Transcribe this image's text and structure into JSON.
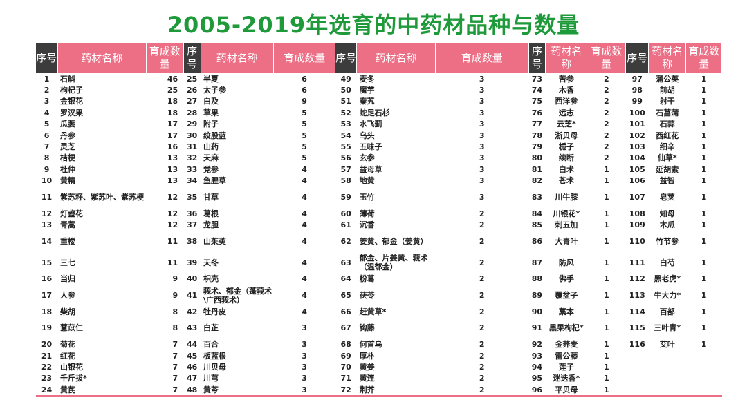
{
  "title": "2005-2019年选育的中药材品种与数量",
  "headers": [
    "序号",
    "药材名称",
    "育成数量",
    "序号",
    "药材名称",
    "育成数量",
    "序号",
    "药材名称",
    "育成数量",
    "序号",
    "药材名称",
    "育成数量",
    "序号",
    "药材名称",
    "育成数量"
  ],
  "rows": [
    [
      [
        "1",
        "石斛",
        "46"
      ],
      [
        "25",
        "半夏",
        "6"
      ],
      [
        "49",
        "麦冬",
        "3"
      ],
      [
        "73",
        "苦参",
        "2"
      ],
      [
        "97",
        "蒲公英",
        "1"
      ]
    ],
    [
      [
        "2",
        "枸杞子",
        "25"
      ],
      [
        "26",
        "太子参",
        "6"
      ],
      [
        "50",
        "魔芋",
        "3"
      ],
      [
        "74",
        "木香",
        "2"
      ],
      [
        "98",
        "前胡",
        "1"
      ]
    ],
    [
      [
        "3",
        "金银花",
        "18"
      ],
      [
        "27",
        "白及",
        "9"
      ],
      [
        "51",
        "秦艽",
        "3"
      ],
      [
        "75",
        "西洋参",
        "2"
      ],
      [
        "99",
        "射干",
        "1"
      ]
    ],
    [
      [
        "4",
        "罗汉果",
        "18"
      ],
      [
        "28",
        "草果",
        "5"
      ],
      [
        "52",
        "蛇足石杉",
        "3"
      ],
      [
        "76",
        "远志",
        "2"
      ],
      [
        "100",
        "石菖蒲",
        "1"
      ]
    ],
    [
      [
        "5",
        "瓜蒌",
        "17"
      ],
      [
        "29",
        "附子",
        "5"
      ],
      [
        "53",
        "水飞蓟",
        "3"
      ],
      [
        "77",
        "云芝*",
        "2"
      ],
      [
        "101",
        "石蒜",
        "1"
      ]
    ],
    [
      [
        "6",
        "丹参",
        "17"
      ],
      [
        "30",
        "绞股蓝",
        "5"
      ],
      [
        "54",
        "乌头",
        "3"
      ],
      [
        "78",
        "浙贝母",
        "2"
      ],
      [
        "102",
        "西红花",
        "1"
      ]
    ],
    [
      [
        "7",
        "灵芝",
        "16"
      ],
      [
        "31",
        "山药",
        "5"
      ],
      [
        "55",
        "五味子",
        "3"
      ],
      [
        "79",
        "栀子",
        "2"
      ],
      [
        "103",
        "细辛",
        "1"
      ]
    ],
    [
      [
        "8",
        "桔梗",
        "13"
      ],
      [
        "32",
        "天麻",
        "5"
      ],
      [
        "56",
        "玄参",
        "3"
      ],
      [
        "80",
        "续断",
        "2"
      ],
      [
        "104",
        "仙草*",
        "1"
      ]
    ],
    [
      [
        "9",
        "杜仲",
        "13"
      ],
      [
        "33",
        "党参",
        "4"
      ],
      [
        "57",
        "益母草",
        "3"
      ],
      [
        "81",
        "白术",
        "1"
      ],
      [
        "105",
        "延胡索",
        "1"
      ]
    ],
    [
      [
        "10",
        "黄精",
        "13"
      ],
      [
        "34",
        "鱼腥草",
        "4"
      ],
      [
        "58",
        "地黄",
        "3"
      ],
      [
        "82",
        "苍术",
        "1"
      ],
      [
        "106",
        "益智",
        "1"
      ]
    ],
    [
      [
        "11",
        "紫苏籽、紫苏叶、紫苏梗",
        "12"
      ],
      [
        "35",
        "甘草",
        "4"
      ],
      [
        "59",
        "玉竹",
        "3"
      ],
      [
        "83",
        "川牛膝",
        "1"
      ],
      [
        "107",
        "皂荚",
        "1"
      ]
    ],
    [
      [
        "12",
        "灯盏花",
        "12"
      ],
      [
        "36",
        "葛根",
        "4"
      ],
      [
        "60",
        "薄荷",
        "2"
      ],
      [
        "84",
        "川银花*",
        "1"
      ],
      [
        "108",
        "知母",
        "1"
      ]
    ],
    [
      [
        "13",
        "青蒿",
        "12"
      ],
      [
        "37",
        "龙胆",
        "4"
      ],
      [
        "61",
        "沉香",
        "2"
      ],
      [
        "85",
        "刺五加",
        "1"
      ],
      [
        "109",
        "木瓜",
        "1"
      ]
    ],
    [
      [
        "14",
        "重楼",
        "11"
      ],
      [
        "38",
        "山茱萸",
        "4"
      ],
      [
        "62",
        "姜黄、郁金（姜黄）",
        "2"
      ],
      [
        "86",
        "大青叶",
        "1"
      ],
      [
        "110",
        "竹节参",
        "1"
      ]
    ],
    [
      [
        "15",
        "三七",
        "11"
      ],
      [
        "39",
        "天冬",
        "4"
      ],
      [
        "63",
        "郁金、片姜黄、莪术（温郁金）",
        "2"
      ],
      [
        "87",
        "防风",
        "1"
      ],
      [
        "111",
        "白芍",
        "1"
      ]
    ],
    [
      [
        "16",
        "当归",
        "9"
      ],
      [
        "40",
        "枳壳",
        "4"
      ],
      [
        "64",
        "粉葛",
        "2"
      ],
      [
        "88",
        "佛手",
        "1"
      ],
      [
        "112",
        "黑老虎*",
        "1"
      ]
    ],
    [
      [
        "17",
        "人参",
        "9"
      ],
      [
        "41",
        "莪术、郁金（蓬莪术\\广西莪术）",
        "4"
      ],
      [
        "65",
        "茯苓",
        "2"
      ],
      [
        "89",
        "覆盆子",
        "1"
      ],
      [
        "113",
        "牛大力*",
        "1"
      ]
    ],
    [
      [
        "18",
        "柴胡",
        "8"
      ],
      [
        "42",
        "牡丹皮",
        "4"
      ],
      [
        "66",
        "赶黄草*",
        "2"
      ],
      [
        "90",
        "藁本",
        "1"
      ],
      [
        "114",
        "百部",
        "1"
      ]
    ],
    [
      [
        "19",
        "薏苡仁",
        "8"
      ],
      [
        "43",
        "白芷",
        "3"
      ],
      [
        "67",
        "钩藤",
        "2"
      ],
      [
        "91",
        "黑果枸杞*",
        "1"
      ],
      [
        "115",
        "三叶青*",
        "1"
      ]
    ],
    [
      [
        "20",
        "菊花",
        "7"
      ],
      [
        "44",
        "百合",
        "3"
      ],
      [
        "68",
        "何首乌",
        "2"
      ],
      [
        "92",
        "金荞麦",
        "1"
      ],
      [
        "116",
        "艾叶",
        "1"
      ]
    ],
    [
      [
        "21",
        "红花",
        "7"
      ],
      [
        "45",
        "板蓝根",
        "3"
      ],
      [
        "69",
        "厚朴",
        "2"
      ],
      [
        "93",
        "雷公藤",
        "1"
      ],
      [
        "",
        "",
        " "
      ]
    ],
    [
      [
        "22",
        "山银花",
        "7"
      ],
      [
        "46",
        "川贝母",
        "3"
      ],
      [
        "70",
        "黄姜",
        "2"
      ],
      [
        "94",
        "莲子",
        "1"
      ],
      [
        "",
        "",
        ""
      ]
    ],
    [
      [
        "23",
        "千斤拔*",
        "7"
      ],
      [
        "47",
        "川芎",
        "3"
      ],
      [
        "71",
        "黄连",
        "2"
      ],
      [
        "95",
        "迷迭香*",
        "1"
      ],
      [
        "",
        "",
        ""
      ]
    ],
    [
      [
        "24",
        "黄芪",
        "7"
      ],
      [
        "48",
        "黄芩",
        "3"
      ],
      [
        "72",
        "荆芥",
        "2"
      ],
      [
        "96",
        "平贝母",
        "1"
      ],
      [
        "",
        "",
        ""
      ]
    ]
  ],
  "tall_rows": [
    10,
    13,
    14,
    16,
    18
  ]
}
